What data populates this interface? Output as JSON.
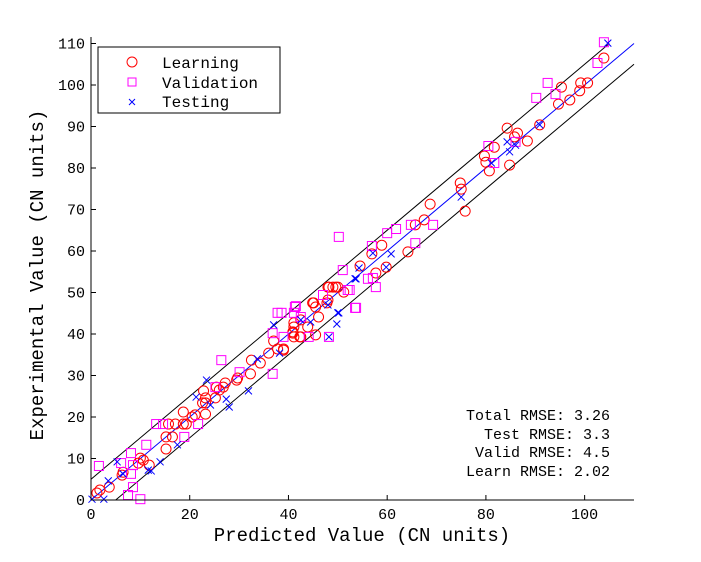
{
  "chart_data": {
    "type": "scatter",
    "xlabel": "Predicted Value (CN units)",
    "ylabel": "Experimental Value (CN units)",
    "xlim": [
      0,
      110
    ],
    "ylim": [
      0,
      110
    ],
    "xticks": [
      "0",
      "20",
      "40",
      "60",
      "80",
      "100"
    ],
    "yticks": [
      "0",
      "10",
      "20",
      "30",
      "40",
      "50",
      "60",
      "70",
      "80",
      "90",
      "100",
      "110"
    ],
    "grid": false,
    "legend_position": "top-left",
    "legend": [
      "Learning",
      "Validation",
      "Testing"
    ],
    "reference_lines": [
      {
        "name": "fit line",
        "slope": 1,
        "intercept": 0,
        "color": "#0000ff"
      },
      {
        "name": "upper bound",
        "slope": 1,
        "intercept": 5,
        "color": "#000000"
      },
      {
        "name": "lower bound",
        "slope": 1,
        "intercept": -5,
        "color": "#000000"
      }
    ],
    "annotations": [
      "Total RMSE: 3.26",
      "Test RMSE: 3.3",
      "Valid RMSE: 4.5",
      "Learn RMSE: 2.02"
    ],
    "series": [
      {
        "name": "Learning",
        "marker": "circle",
        "color": "#ff0000",
        "points": [
          [
            1.8,
            2.4
          ],
          [
            1.2,
            1.7
          ],
          [
            3.7,
            3.1
          ],
          [
            6.5,
            6.7
          ],
          [
            6.3,
            6.0
          ],
          [
            10.0,
            10.1
          ],
          [
            10.6,
            9.6
          ],
          [
            9.6,
            8.9
          ],
          [
            11.8,
            8.4
          ],
          [
            15.2,
            12.3
          ],
          [
            15.2,
            15.2
          ],
          [
            16.5,
            15.2
          ],
          [
            15.7,
            18.3
          ],
          [
            17.1,
            18.3
          ],
          [
            18.7,
            18.3
          ],
          [
            19.3,
            18.3
          ],
          [
            18.7,
            21.2
          ],
          [
            20.5,
            20.0
          ],
          [
            21.1,
            20.5
          ],
          [
            23.2,
            20.7
          ],
          [
            23.2,
            23.4
          ],
          [
            22.6,
            23.4
          ],
          [
            23.2,
            24.6
          ],
          [
            22.8,
            26.3
          ],
          [
            25.2,
            24.6
          ],
          [
            26.0,
            26.5
          ],
          [
            25.4,
            27.2
          ],
          [
            26.8,
            27.2
          ],
          [
            27.2,
            28.2
          ],
          [
            29.5,
            28.9
          ],
          [
            29.7,
            29.4
          ],
          [
            32.3,
            30.4
          ],
          [
            32.5,
            33.7
          ],
          [
            34.3,
            33.0
          ],
          [
            36.0,
            35.4
          ],
          [
            37.0,
            38.3
          ],
          [
            37.8,
            36.4
          ],
          [
            39.0,
            36.4
          ],
          [
            41.1,
            39.3
          ],
          [
            42.3,
            39.3
          ],
          [
            41.1,
            42.7
          ],
          [
            40.9,
            40.5
          ],
          [
            45.5,
            39.8
          ],
          [
            43.9,
            41.7
          ],
          [
            46.1,
            44.1
          ],
          [
            44.9,
            47.5
          ],
          [
            47.8,
            47.5
          ],
          [
            48.2,
            51.3
          ],
          [
            49.6,
            51.3
          ],
          [
            51.2,
            50.1
          ],
          [
            48.0,
            51.3
          ],
          [
            49.0,
            51.3
          ],
          [
            50.0,
            51.3
          ],
          [
            45.1,
            47.5
          ],
          [
            45.5,
            46.5
          ],
          [
            48.0,
            48.2
          ],
          [
            42.5,
            43.4
          ],
          [
            41.1,
            41.7
          ],
          [
            40.9,
            40.2
          ],
          [
            42.5,
            39.3
          ],
          [
            39.0,
            36.1
          ],
          [
            54.5,
            56.4
          ],
          [
            59.8,
            56.1
          ],
          [
            57.7,
            54.7
          ],
          [
            56.9,
            59.3
          ],
          [
            58.9,
            61.4
          ],
          [
            64.2,
            59.8
          ],
          [
            65.7,
            66.3
          ],
          [
            67.5,
            67.5
          ],
          [
            68.7,
            71.3
          ],
          [
            75.8,
            69.6
          ],
          [
            75.0,
            74.9
          ],
          [
            74.8,
            76.4
          ],
          [
            80.7,
            79.3
          ],
          [
            80.0,
            81.4
          ],
          [
            79.7,
            82.9
          ],
          [
            84.8,
            80.7
          ],
          [
            81.7,
            85.0
          ],
          [
            88.4,
            86.5
          ],
          [
            85.8,
            87.5
          ],
          [
            86.4,
            88.4
          ],
          [
            84.3,
            89.6
          ],
          [
            90.9,
            90.4
          ],
          [
            94.7,
            95.4
          ],
          [
            97.0,
            96.4
          ],
          [
            99.0,
            98.6
          ],
          [
            95.3,
            99.5
          ],
          [
            99.2,
            100.5
          ],
          [
            100.6,
            100.5
          ],
          [
            103.9,
            106.5
          ]
        ]
      },
      {
        "name": "Validation",
        "marker": "square",
        "color": "#ff00ff",
        "points": [
          [
            1.6,
            8.2
          ],
          [
            6.1,
            8.9
          ],
          [
            8.1,
            11.3
          ],
          [
            8.5,
            8.4
          ],
          [
            8.1,
            6.3
          ],
          [
            8.5,
            3.1
          ],
          [
            7.5,
            1.2
          ],
          [
            10.0,
            0.2
          ],
          [
            11.2,
            13.3
          ],
          [
            13.2,
            18.3
          ],
          [
            14.6,
            18.3
          ],
          [
            21.7,
            18.3
          ],
          [
            18.9,
            15.2
          ],
          [
            26.4,
            33.7
          ],
          [
            30.1,
            30.8
          ],
          [
            25.2,
            27.2
          ],
          [
            36.8,
            30.4
          ],
          [
            36.8,
            40.2
          ],
          [
            37.8,
            45.1
          ],
          [
            38.6,
            45.1
          ],
          [
            41.1,
            45.1
          ],
          [
            41.5,
            46.7
          ],
          [
            42.5,
            44.1
          ],
          [
            44.1,
            39.3
          ],
          [
            48.2,
            39.3
          ],
          [
            47.0,
            49.4
          ],
          [
            52.0,
            50.6
          ],
          [
            53.5,
            46.3
          ],
          [
            51.0,
            55.4
          ],
          [
            56.1,
            53.3
          ],
          [
            57.7,
            51.3
          ],
          [
            39.0,
            39.3
          ],
          [
            50.2,
            63.4
          ],
          [
            60.0,
            64.3
          ],
          [
            61.8,
            65.3
          ],
          [
            64.8,
            66.3
          ],
          [
            69.3,
            66.3
          ],
          [
            65.7,
            61.9
          ],
          [
            56.9,
            61.2
          ],
          [
            57.1,
            53.5
          ],
          [
            52.4,
            50.6
          ],
          [
            53.7,
            46.3
          ],
          [
            41.3,
            46.5
          ],
          [
            80.5,
            85.3
          ],
          [
            81.7,
            81.2
          ],
          [
            86.0,
            86.3
          ],
          [
            90.2,
            96.9
          ],
          [
            92.5,
            100.5
          ],
          [
            94.1,
            97.8
          ],
          [
            102.6,
            105.3
          ],
          [
            103.9,
            110.3
          ]
        ]
      },
      {
        "name": "Testing",
        "marker": "x",
        "color": "#0000ff",
        "points": [
          [
            0.2,
            0.2
          ],
          [
            3.5,
            4.6
          ],
          [
            2.6,
            0.2
          ],
          [
            5.3,
            9.2
          ],
          [
            6.5,
            6.3
          ],
          [
            11.6,
            7.2
          ],
          [
            12.2,
            7.0
          ],
          [
            14.0,
            9.2
          ],
          [
            17.5,
            13.3
          ],
          [
            21.3,
            24.8
          ],
          [
            23.4,
            28.9
          ],
          [
            24.2,
            22.9
          ],
          [
            27.4,
            24.3
          ],
          [
            28.0,
            22.4
          ],
          [
            31.9,
            26.3
          ],
          [
            33.7,
            34.0
          ],
          [
            37.0,
            42.2
          ],
          [
            38.2,
            35.4
          ],
          [
            42.5,
            43.4
          ],
          [
            44.5,
            42.9
          ],
          [
            50.0,
            45.1
          ],
          [
            49.8,
            42.4
          ],
          [
            48.0,
            47.0
          ],
          [
            50.2,
            45.1
          ],
          [
            48.2,
            39.3
          ],
          [
            53.5,
            53.3
          ],
          [
            53.7,
            53.3
          ],
          [
            54.3,
            55.9
          ],
          [
            57.1,
            59.5
          ],
          [
            60.8,
            59.3
          ],
          [
            59.8,
            56.1
          ],
          [
            75.0,
            73.0
          ],
          [
            81.1,
            81.2
          ],
          [
            84.8,
            83.9
          ],
          [
            86.0,
            85.5
          ],
          [
            84.3,
            86.3
          ],
          [
            90.9,
            90.4
          ],
          [
            104.7,
            110.1
          ]
        ]
      }
    ]
  }
}
